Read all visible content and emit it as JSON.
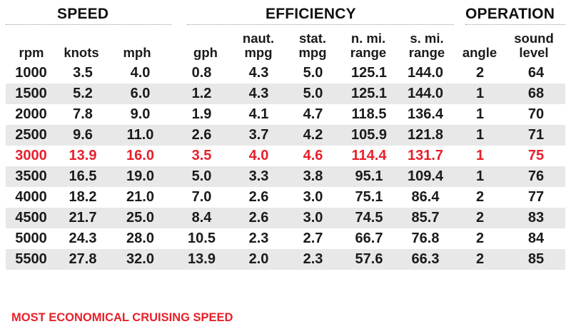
{
  "groups": {
    "speed": "SPEED",
    "efficiency": "EFFICIENCY",
    "operation": "OPERATION"
  },
  "columns": [
    "rpm",
    "knots",
    "mph",
    "gph",
    "naut. mpg",
    "stat. mpg",
    "n. mi. range",
    "s. mi. range",
    "angle",
    "sound level"
  ],
  "rows": [
    [
      "1000",
      "3.5",
      "4.0",
      "0.8",
      "4.3",
      "5.0",
      "125.1",
      "144.0",
      "2",
      "64"
    ],
    [
      "1500",
      "5.2",
      "6.0",
      "1.2",
      "4.3",
      "5.0",
      "125.1",
      "144.0",
      "1",
      "68"
    ],
    [
      "2000",
      "7.8",
      "9.0",
      "1.9",
      "4.1",
      "4.7",
      "118.5",
      "136.4",
      "1",
      "70"
    ],
    [
      "2500",
      "9.6",
      "11.0",
      "2.6",
      "3.7",
      "4.2",
      "105.9",
      "121.8",
      "1",
      "71"
    ],
    [
      "3000",
      "13.9",
      "16.0",
      "3.5",
      "4.0",
      "4.6",
      "114.4",
      "131.7",
      "1",
      "75"
    ],
    [
      "3500",
      "16.5",
      "19.0",
      "5.0",
      "3.3",
      "3.8",
      "95.1",
      "109.4",
      "1",
      "76"
    ],
    [
      "4000",
      "18.2",
      "21.0",
      "7.0",
      "2.6",
      "3.0",
      "75.1",
      "86.4",
      "2",
      "77"
    ],
    [
      "4500",
      "21.7",
      "25.0",
      "8.4",
      "2.6",
      "3.0",
      "74.5",
      "85.7",
      "2",
      "83"
    ],
    [
      "5000",
      "24.3",
      "28.0",
      "10.5",
      "2.3",
      "2.7",
      "66.7",
      "76.8",
      "2",
      "84"
    ],
    [
      "5500",
      "27.8",
      "32.0",
      "13.9",
      "2.0",
      "2.3",
      "57.6",
      "66.3",
      "2",
      "85"
    ]
  ],
  "highlight_row": 4,
  "footnote": "MOST ECONOMICAL CRUISING SPEED",
  "colors": {
    "highlight": "#e8202a",
    "stripe": "#e8e8e8",
    "text": "#1a1a1a"
  }
}
